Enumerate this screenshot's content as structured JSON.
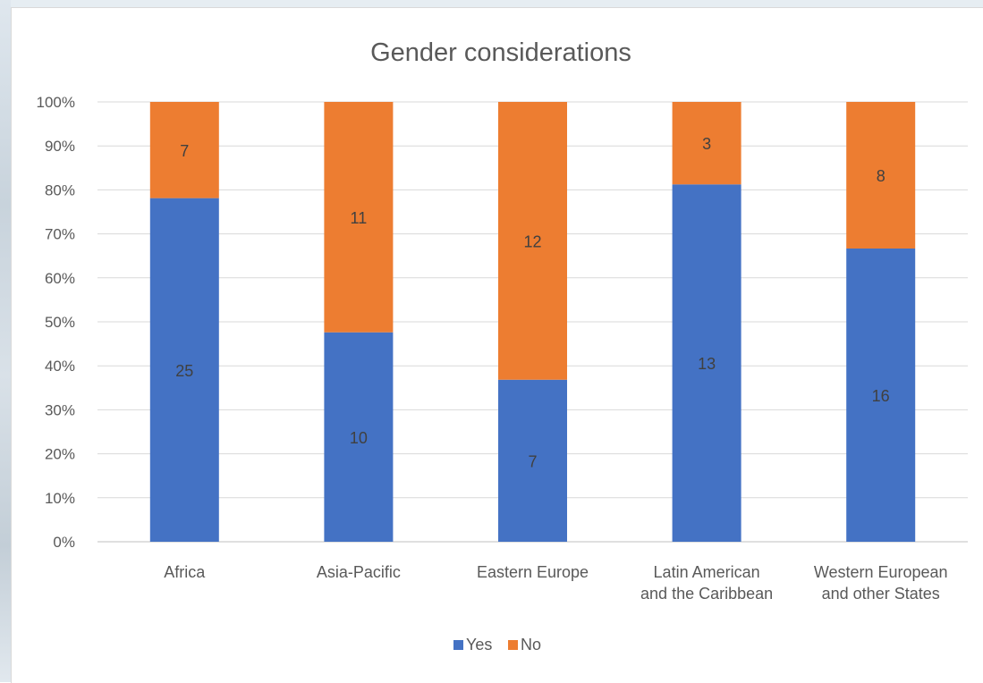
{
  "chart_data": {
    "type": "bar",
    "stacked": "percent",
    "title": "Gender considerations",
    "categories": [
      [
        "Africa"
      ],
      [
        "Asia-Pacific"
      ],
      [
        "Eastern Europe"
      ],
      [
        "Latin American",
        "and the Caribbean"
      ],
      [
        "Western European",
        "and other States"
      ]
    ],
    "series": [
      {
        "name": "Yes",
        "values": [
          25,
          10,
          7,
          13,
          16
        ],
        "color": "#4472c4"
      },
      {
        "name": "No",
        "values": [
          7,
          11,
          12,
          3,
          8
        ],
        "color": "#ed7d31"
      }
    ],
    "yticks": [
      "0%",
      "10%",
      "20%",
      "30%",
      "40%",
      "50%",
      "60%",
      "70%",
      "80%",
      "90%",
      "100%"
    ],
    "ylim": [
      0,
      100
    ],
    "grid": true,
    "legend": "bottom"
  }
}
